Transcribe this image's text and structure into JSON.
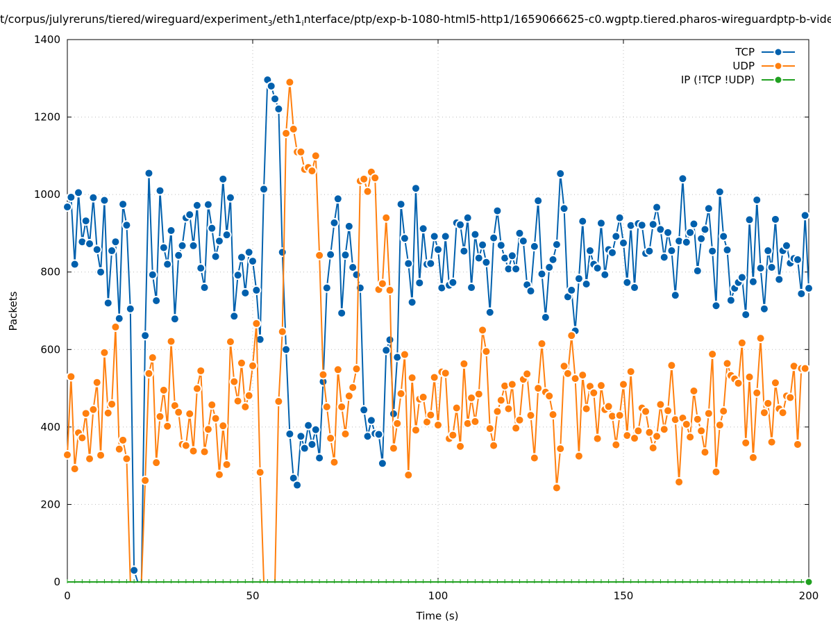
{
  "title": {
    "pre": "t/corpus/julyreruns/tiered/wireguard/experiment",
    "sub1": "3",
    "mid": "/eth1",
    "sub2": "i",
    "post": "nterface/ptp/exp-b-1080-html5-http1/1659066625-c0.wgptp.tiered.pharos-wireguardptp-b-vide"
  },
  "chart_data": {
    "type": "line",
    "xlabel": "Time (s)",
    "ylabel": "Packets",
    "xlim": [
      0,
      200
    ],
    "ylim": [
      0,
      1400
    ],
    "xticks": [
      "0",
      "50",
      "100",
      "150",
      "200"
    ],
    "yticks": [
      "0",
      "200",
      "400",
      "600",
      "800",
      "1000",
      "1200",
      "1400"
    ],
    "grid": true,
    "legend_position": "top-right",
    "x_step": 1,
    "series": [
      {
        "name": "TCP",
        "color": "#0060ad",
        "values": [
          968,
          993,
          820,
          1005,
          878,
          932,
          873,
          992,
          858,
          800,
          985,
          720,
          855,
          878,
          680,
          975,
          921,
          705,
          30,
          0,
          0,
          636,
          1055,
          793,
          726,
          1010,
          863,
          820,
          907,
          679,
          843,
          868,
          940,
          948,
          868,
          972,
          810,
          760,
          974,
          913,
          840,
          880,
          1040,
          896,
          992,
          686,
          792,
          838,
          746,
          851,
          828,
          753,
          626,
          1014,
          1296,
          1280,
          1247,
          1221,
          851,
          600,
          382,
          268,
          250,
          376,
          345,
          404,
          355,
          393,
          320,
          517,
          759,
          845,
          927,
          989,
          694,
          844,
          918,
          812,
          793,
          759,
          444,
          376,
          417,
          383,
          381,
          306,
          598,
          625,
          434,
          580,
          975,
          887,
          822,
          722,
          1016,
          772,
          912,
          820,
          822,
          892,
          858,
          759,
          892,
          766,
          773,
          927,
          922,
          854,
          940,
          760,
          897,
          836,
          870,
          825,
          696,
          888,
          958,
          869,
          836,
          808,
          842,
          808,
          900,
          880,
          767,
          751,
          866,
          984,
          795,
          683,
          812,
          832,
          871,
          1054,
          964,
          736,
          753,
          648,
          783,
          931,
          769,
          855,
          820,
          810,
          926,
          793,
          858,
          850,
          892,
          940,
          875,
          773,
          920,
          760,
          925,
          921,
          848,
          854,
          923,
          967,
          910,
          838,
          902,
          855,
          740,
          880,
          1041,
          877,
          902,
          924,
          803,
          886,
          910,
          964,
          854,
          713,
          1007,
          892,
          857,
          727,
          758,
          773,
          786,
          690,
          935,
          775,
          986,
          810,
          705,
          855,
          812,
          936,
          781,
          855,
          868,
          823,
          835,
          832,
          744,
          946,
          758
        ]
      },
      {
        "name": "UDP",
        "color": "#ff7f0e",
        "values": [
          328,
          530,
          292,
          385,
          372,
          435,
          318,
          445,
          515,
          327,
          592,
          436,
          459,
          658,
          343,
          366,
          318,
          0,
          0,
          0,
          0,
          262,
          538,
          579,
          308,
          427,
          495,
          402,
          621,
          455,
          438,
          355,
          352,
          434,
          338,
          499,
          545,
          336,
          394,
          457,
          422,
          277,
          403,
          303,
          620,
          517,
          467,
          565,
          452,
          481,
          558,
          667,
          283,
          0,
          0,
          0,
          0,
          466,
          646,
          1158,
          1290,
          1169,
          1110,
          1110,
          1065,
          1070,
          1061,
          1100,
          843,
          535,
          452,
          371,
          309,
          548,
          452,
          382,
          480,
          502,
          550,
          1035,
          1040,
          1008,
          1058,
          1043,
          755,
          770,
          940,
          753,
          345,
          409,
          486,
          587,
          276,
          527,
          392,
          472,
          477,
          413,
          431,
          528,
          405,
          542,
          539,
          370,
          379,
          449,
          350,
          563,
          409,
          475,
          414,
          485,
          650,
          595,
          396,
          352,
          440,
          469,
          506,
          447,
          510,
          397,
          418,
          523,
          537,
          430,
          320,
          500,
          615,
          490,
          480,
          432,
          243,
          344,
          557,
          538,
          636,
          525,
          325,
          534,
          447,
          505,
          488,
          370,
          507,
          445,
          453,
          428,
          354,
          430,
          510,
          378,
          543,
          371,
          390,
          449,
          440,
          386,
          346,
          376,
          458,
          394,
          442,
          559,
          419,
          258,
          423,
          407,
          374,
          493,
          420,
          390,
          335,
          435,
          588,
          284,
          405,
          441,
          564,
          533,
          524,
          513,
          617,
          359,
          529,
          321,
          488,
          629,
          437,
          461,
          361,
          514,
          447,
          437,
          480,
          476,
          557,
          355,
          551,
          551
        ]
      },
      {
        "name": "IP (!TCP  !UDP)",
        "color": "#20a020",
        "values": [
          0,
          0
        ]
      }
    ]
  }
}
